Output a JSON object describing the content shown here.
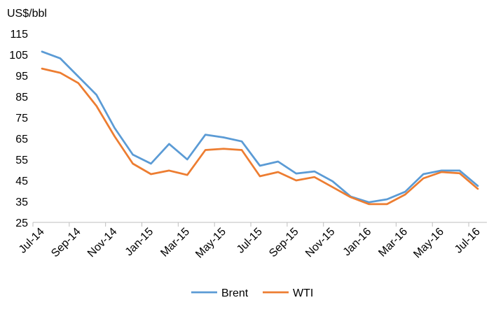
{
  "chart_data": {
    "type": "line",
    "y_unit_label": "US$/bbl",
    "x": [
      "Jul-14",
      "Aug-14",
      "Sep-14",
      "Oct-14",
      "Nov-14",
      "Dec-14",
      "Jan-15",
      "Feb-15",
      "Mar-15",
      "Apr-15",
      "May-15",
      "Jun-15",
      "Jul-15",
      "Aug-15",
      "Sep-15",
      "Oct-15",
      "Nov-15",
      "Dec-15",
      "Jan-16",
      "Feb-16",
      "Mar-16",
      "Apr-16",
      "May-16",
      "Jun-16",
      "Jul-16"
    ],
    "x_tick_labels": [
      "Jul-14",
      "Sep-14",
      "Nov-14",
      "Jan-15",
      "Mar-15",
      "May-15",
      "Jul-15",
      "Sep-15",
      "Nov-15",
      "Jan-16",
      "Mar-16",
      "May-16",
      "Jul-16"
    ],
    "y_ticks": [
      25,
      35,
      45,
      55,
      65,
      75,
      85,
      95,
      105,
      115
    ],
    "ylim": [
      25,
      115
    ],
    "grid": false,
    "legend_position": "bottom",
    "series": [
      {
        "name": "Brent",
        "color": "#5b9bd5",
        "values": [
          106.4,
          103.2,
          94.5,
          85.8,
          70.0,
          57.3,
          53.0,
          62.4,
          55.0,
          66.8,
          65.5,
          63.6,
          52.0,
          54.0,
          48.3,
          49.3,
          44.6,
          37.3,
          34.6,
          36.0,
          39.6,
          48.0,
          49.7,
          49.7,
          42.4
        ]
      },
      {
        "name": "WTI",
        "color": "#ed7d31",
        "values": [
          98.3,
          96.3,
          91.4,
          80.5,
          66.0,
          53.0,
          48.0,
          49.7,
          47.6,
          59.5,
          60.1,
          59.5,
          47.0,
          49.0,
          45.0,
          46.6,
          41.8,
          37.0,
          33.7,
          33.7,
          38.3,
          46.0,
          49.0,
          48.4,
          41.0
        ]
      }
    ]
  }
}
